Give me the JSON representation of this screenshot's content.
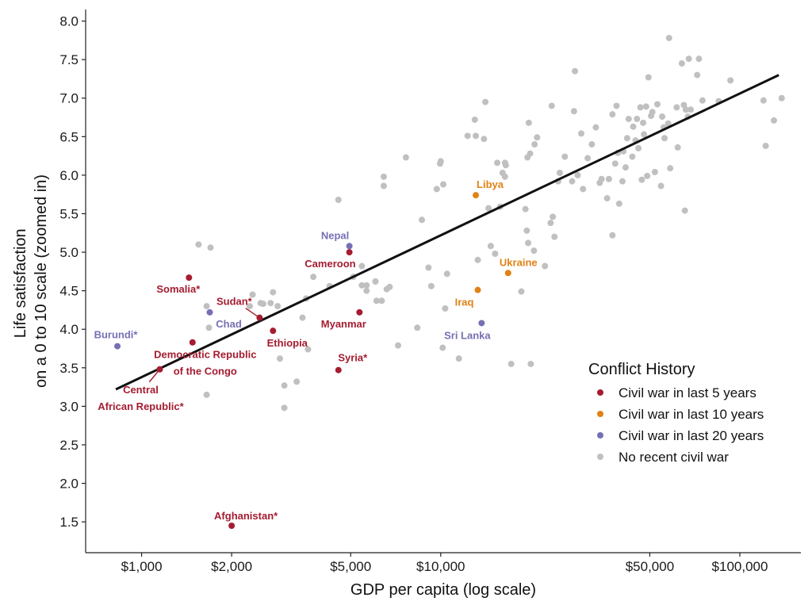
{
  "chart_data": {
    "type": "scatter",
    "title": "",
    "xlabel": "GDP per capita (log scale)",
    "ylabel_lines": [
      "Life satisfaction",
      "on a 0 to 10 scale (zoomed in)"
    ],
    "x_scale": "log",
    "xlim": [
      650,
      160000
    ],
    "ylim": [
      1.1,
      8.15
    ],
    "x_ticks": [
      {
        "value": 1000,
        "label": "$1,000"
      },
      {
        "value": 2000,
        "label": "$2,000"
      },
      {
        "value": 5000,
        "label": "$5,000"
      },
      {
        "value": 10000,
        "label": "$10,000"
      },
      {
        "value": 50000,
        "label": "$50,000"
      },
      {
        "value": 100000,
        "label": "$100,000"
      }
    ],
    "y_ticks": [
      {
        "value": 1.5,
        "label": "1.5"
      },
      {
        "value": 2.0,
        "label": "2.0"
      },
      {
        "value": 2.5,
        "label": "2.5"
      },
      {
        "value": 3.0,
        "label": "3.0"
      },
      {
        "value": 3.5,
        "label": "3.5"
      },
      {
        "value": 4.0,
        "label": "4.0"
      },
      {
        "value": 4.5,
        "label": "4.5"
      },
      {
        "value": 5.0,
        "label": "5.0"
      },
      {
        "value": 5.5,
        "label": "5.5"
      },
      {
        "value": 6.0,
        "label": "6.0"
      },
      {
        "value": 6.5,
        "label": "6.5"
      },
      {
        "value": 7.0,
        "label": "7.0"
      },
      {
        "value": 7.5,
        "label": "7.5"
      },
      {
        "value": 8.0,
        "label": "8.0"
      }
    ],
    "trend_line": {
      "x": [
        820,
        135000
      ],
      "y": [
        3.22,
        7.3
      ]
    },
    "colors": {
      "civil_war_5": "#a51c30",
      "civil_war_10": "#e08214",
      "civil_war_20": "#7570b3",
      "no_war": "#c0c0c0",
      "trend": "#111111"
    },
    "legend": {
      "title": "Conflict History",
      "position": "bottom-right",
      "items": [
        {
          "key": "civil_war_5",
          "label": "Civil war in last 5 years"
        },
        {
          "key": "civil_war_10",
          "label": "Civil war in last 10 years"
        },
        {
          "key": "civil_war_20",
          "label": "Civil war in last 20 years"
        },
        {
          "key": "no_war",
          "label": "No recent civil war"
        }
      ]
    },
    "labeled_points": [
      {
        "country": "Afghanistan*",
        "label_lines": [
          "Afghanistan*"
        ],
        "gdp": 2000,
        "ls": 1.45,
        "group": "civil_war_5",
        "label_anchor": "middle",
        "label_dx": 18,
        "label_dy": -8
      },
      {
        "country": "Central African Republic*",
        "label_lines": [
          "Central",
          "African Republic*"
        ],
        "gdp": 1150,
        "ls": 3.48,
        "group": "civil_war_5",
        "label_anchor": "middle",
        "label_dx": -24,
        "label_dy": 30,
        "leader": true
      },
      {
        "country": "Democratic Republic of the Congo",
        "label_lines": [
          "Democratic Republic",
          "of the Congo"
        ],
        "gdp": 1480,
        "ls": 3.83,
        "group": "civil_war_5",
        "label_anchor": "middle",
        "label_dx": 16,
        "label_dy": 20
      },
      {
        "country": "Somalia*",
        "label_lines": [
          "Somalia*"
        ],
        "gdp": 1440,
        "ls": 4.67,
        "group": "civil_war_5",
        "label_anchor": "end",
        "label_dx": 14,
        "label_dy": 19
      },
      {
        "country": "Sudan*",
        "label_lines": [
          "Sudan*"
        ],
        "gdp": 2480,
        "ls": 4.15,
        "group": "civil_war_5",
        "label_anchor": "middle",
        "label_dx": -32,
        "label_dy": -16,
        "leader": true
      },
      {
        "country": "Ethiopia",
        "label_lines": [
          "Ethiopia"
        ],
        "gdp": 2750,
        "ls": 3.98,
        "group": "civil_war_5",
        "label_anchor": "middle",
        "label_dx": 18,
        "label_dy": 20
      },
      {
        "country": "Cameroon",
        "label_lines": [
          "Cameroon"
        ],
        "gdp": 4950,
        "ls": 5.0,
        "group": "civil_war_5",
        "label_anchor": "end",
        "label_dx": 8,
        "label_dy": 19
      },
      {
        "country": "Myanmar",
        "label_lines": [
          "Myanmar"
        ],
        "gdp": 5350,
        "ls": 4.22,
        "group": "civil_war_5",
        "label_anchor": "middle",
        "label_dx": -20,
        "label_dy": 19
      },
      {
        "country": "Syria*",
        "label_lines": [
          "Syria*"
        ],
        "gdp": 4550,
        "ls": 3.47,
        "group": "civil_war_5",
        "label_anchor": "middle",
        "label_dx": 18,
        "label_dy": -11
      },
      {
        "country": "Libya",
        "label_lines": [
          "Libya"
        ],
        "gdp": 13100,
        "ls": 5.74,
        "group": "civil_war_10",
        "label_anchor": "middle",
        "label_dx": 18,
        "label_dy": -9
      },
      {
        "country": "Ukraine",
        "label_lines": [
          "Ukraine"
        ],
        "gdp": 16800,
        "ls": 4.73,
        "group": "civil_war_10",
        "label_anchor": "middle",
        "label_dx": 13,
        "label_dy": -9
      },
      {
        "country": "Iraq",
        "label_lines": [
          "Iraq"
        ],
        "gdp": 13300,
        "ls": 4.51,
        "group": "civil_war_10",
        "label_anchor": "middle",
        "label_dx": -17,
        "label_dy": 20
      },
      {
        "country": "Nepal",
        "label_lines": [
          "Nepal"
        ],
        "gdp": 4950,
        "ls": 5.08,
        "group": "civil_war_20",
        "label_anchor": "middle",
        "label_dx": -18,
        "label_dy": -9
      },
      {
        "country": "Burundi*",
        "label_lines": [
          "Burundi*"
        ],
        "gdp": 830,
        "ls": 3.78,
        "group": "civil_war_20",
        "label_anchor": "middle",
        "label_dx": -2,
        "label_dy": -10
      },
      {
        "country": "Chad",
        "label_lines": [
          "Chad"
        ],
        "gdp": 1690,
        "ls": 4.22,
        "group": "civil_war_20",
        "label_anchor": "middle",
        "label_dx": 24,
        "label_dy": 19
      },
      {
        "country": "Sri Lanka",
        "label_lines": [
          "Sri Lanka"
        ],
        "gdp": 13700,
        "ls": 4.08,
        "group": "civil_war_20",
        "label_anchor": "middle",
        "label_dx": -18,
        "label_dy": 20
      }
    ],
    "background_points": [
      [
        1550,
        5.1
      ],
      [
        1700,
        5.06
      ],
      [
        1650,
        4.3
      ],
      [
        1680,
        4.02
      ],
      [
        1650,
        3.15
      ],
      [
        2300,
        4.3
      ],
      [
        2350,
        4.45
      ],
      [
        2500,
        4.34
      ],
      [
        2550,
        4.33
      ],
      [
        2700,
        4.34
      ],
      [
        2750,
        4.48
      ],
      [
        2850,
        4.3
      ],
      [
        2900,
        3.62
      ],
      [
        3000,
        3.27
      ],
      [
        3000,
        2.98
      ],
      [
        3300,
        3.32
      ],
      [
        3450,
        4.15
      ],
      [
        3550,
        4.4
      ],
      [
        3600,
        3.74
      ],
      [
        3750,
        4.68
      ],
      [
        4250,
        4.56
      ],
      [
        4550,
        5.68
      ],
      [
        5100,
        4.68
      ],
      [
        5450,
        4.82
      ],
      [
        5450,
        4.57
      ],
      [
        5650,
        4.57
      ],
      [
        5650,
        4.5
      ],
      [
        6050,
        4.62
      ],
      [
        6100,
        4.37
      ],
      [
        6350,
        4.37
      ],
      [
        6450,
        5.98
      ],
      [
        6450,
        5.86
      ],
      [
        6600,
        4.52
      ],
      [
        6750,
        4.55
      ],
      [
        7200,
        3.79
      ],
      [
        7650,
        6.23
      ],
      [
        8350,
        4.02
      ],
      [
        8650,
        5.42
      ],
      [
        9100,
        4.8
      ],
      [
        9300,
        4.56
      ],
      [
        9700,
        5.82
      ],
      [
        9950,
        6.15
      ],
      [
        10000,
        6.18
      ],
      [
        10150,
        3.76
      ],
      [
        10200,
        5.88
      ],
      [
        10350,
        4.27
      ],
      [
        10500,
        4.72
      ],
      [
        11500,
        3.62
      ],
      [
        12300,
        6.51
      ],
      [
        13000,
        6.72
      ],
      [
        13100,
        6.51
      ],
      [
        13300,
        4.9
      ],
      [
        13950,
        6.47
      ],
      [
        14100,
        6.95
      ],
      [
        14450,
        5.57
      ],
      [
        14700,
        5.08
      ],
      [
        15200,
        4.98
      ],
      [
        15450,
        6.16
      ],
      [
        15800,
        5.59
      ],
      [
        16100,
        6.03
      ],
      [
        16400,
        6.16
      ],
      [
        16400,
        5.98
      ],
      [
        16500,
        6.13
      ],
      [
        17200,
        3.55
      ],
      [
        18600,
        4.49
      ],
      [
        19200,
        5.56
      ],
      [
        19400,
        5.28
      ],
      [
        19500,
        6.23
      ],
      [
        19600,
        5.12
      ],
      [
        19700,
        6.68
      ],
      [
        19900,
        6.28
      ],
      [
        20000,
        3.55
      ],
      [
        20500,
        5.02
      ],
      [
        20600,
        6.4
      ],
      [
        21000,
        6.49
      ],
      [
        22300,
        4.82
      ],
      [
        23300,
        5.38
      ],
      [
        23500,
        6.9
      ],
      [
        23700,
        5.46
      ],
      [
        24000,
        5.2
      ],
      [
        24700,
        5.92
      ],
      [
        25000,
        6.03
      ],
      [
        26000,
        6.24
      ],
      [
        27500,
        5.92
      ],
      [
        27900,
        6.83
      ],
      [
        28100,
        7.35
      ],
      [
        28700,
        6.0
      ],
      [
        29500,
        6.54
      ],
      [
        29900,
        5.82
      ],
      [
        31000,
        6.22
      ],
      [
        32000,
        6.4
      ],
      [
        33000,
        6.62
      ],
      [
        34000,
        5.9
      ],
      [
        34500,
        5.95
      ],
      [
        36000,
        5.7
      ],
      [
        36500,
        5.95
      ],
      [
        37500,
        6.79
      ],
      [
        37500,
        5.22
      ],
      [
        38300,
        6.15
      ],
      [
        38700,
        6.9
      ],
      [
        39100,
        6.29
      ],
      [
        39500,
        5.63
      ],
      [
        40500,
        5.92
      ],
      [
        40800,
        6.31
      ],
      [
        41500,
        6.1
      ],
      [
        42000,
        6.48
      ],
      [
        42500,
        6.73
      ],
      [
        43700,
        6.24
      ],
      [
        44000,
        6.63
      ],
      [
        44800,
        6.45
      ],
      [
        45300,
        6.73
      ],
      [
        45800,
        6.35
      ],
      [
        46500,
        6.88
      ],
      [
        47000,
        5.94
      ],
      [
        47500,
        6.68
      ],
      [
        47800,
        6.53
      ],
      [
        48600,
        6.89
      ],
      [
        49000,
        5.99
      ],
      [
        49500,
        7.27
      ],
      [
        50500,
        6.77
      ],
      [
        51000,
        6.82
      ],
      [
        52000,
        6.04
      ],
      [
        53000,
        6.92
      ],
      [
        54500,
        5.86
      ],
      [
        55000,
        6.76
      ],
      [
        55600,
        6.62
      ],
      [
        56000,
        6.48
      ],
      [
        57600,
        6.67
      ],
      [
        58000,
        7.78
      ],
      [
        58500,
        6.09
      ],
      [
        61500,
        6.88
      ],
      [
        62000,
        6.36
      ],
      [
        64000,
        7.45
      ],
      [
        65000,
        6.91
      ],
      [
        65500,
        5.54
      ],
      [
        66000,
        6.85
      ],
      [
        67000,
        6.76
      ],
      [
        67500,
        7.51
      ],
      [
        68500,
        6.85
      ],
      [
        72000,
        7.3
      ],
      [
        73000,
        7.51
      ],
      [
        75000,
        6.97
      ],
      [
        85000,
        6.96
      ],
      [
        93000,
        7.23
      ],
      [
        120000,
        6.97
      ],
      [
        122000,
        6.38
      ],
      [
        130000,
        6.71
      ],
      [
        138000,
        7.0
      ]
    ]
  }
}
